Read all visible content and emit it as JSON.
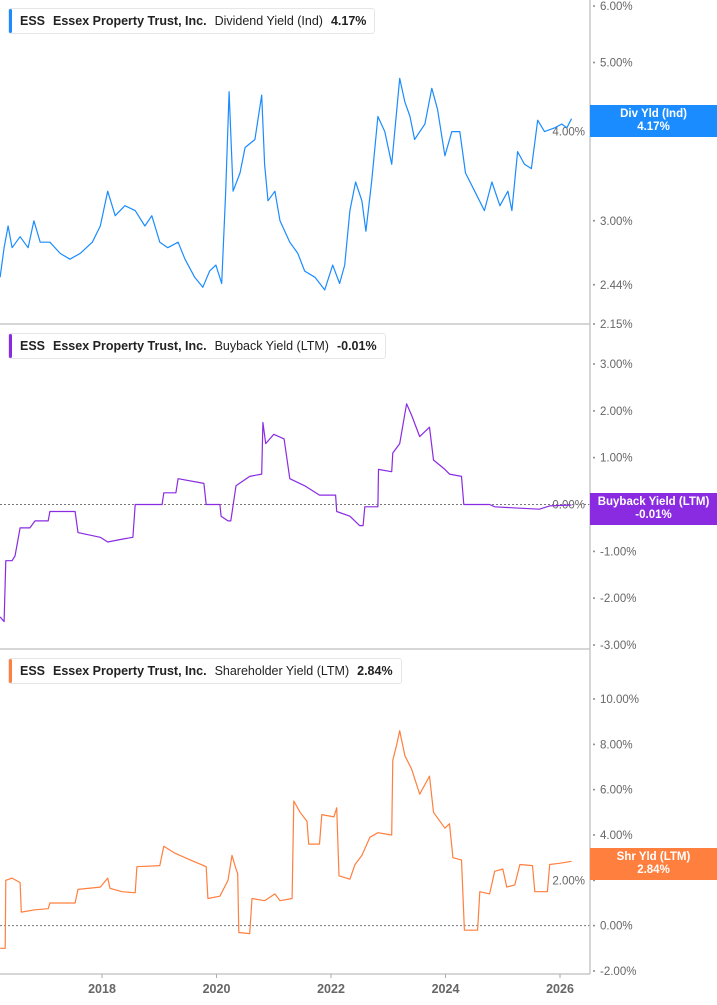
{
  "chart_data": [
    {
      "type": "line",
      "ticker": "ESS",
      "company": "Essex Property Trust, Inc.",
      "metric": "Dividend Yield (Ind)",
      "current_value": "4.17%",
      "callout_label": "Div Yld (Ind)",
      "callout_value": "4.17%",
      "color": "#1a8cff",
      "y_scale": "log",
      "ylim": [
        2.15,
        6.0
      ],
      "y_ticks": [
        "6.00%",
        "5.00%",
        "4.00%",
        "3.00%",
        "2.44%",
        "2.15%"
      ],
      "y_tick_values": [
        6,
        5,
        4,
        3,
        2.44,
        2.15
      ],
      "zero_line": false,
      "points": [
        [
          2016.22,
          2.5
        ],
        [
          2016.29,
          2.75
        ],
        [
          2016.36,
          2.95
        ],
        [
          2016.43,
          2.75
        ],
        [
          2016.57,
          2.85
        ],
        [
          2016.71,
          2.75
        ],
        [
          2016.81,
          3.0
        ],
        [
          2016.92,
          2.8
        ],
        [
          2017.09,
          2.8
        ],
        [
          2017.27,
          2.7
        ],
        [
          2017.44,
          2.65
        ],
        [
          2017.62,
          2.7
        ],
        [
          2017.83,
          2.8
        ],
        [
          2017.97,
          2.95
        ],
        [
          2018.1,
          3.3
        ],
        [
          2018.23,
          3.05
        ],
        [
          2018.4,
          3.15
        ],
        [
          2018.58,
          3.1
        ],
        [
          2018.75,
          2.95
        ],
        [
          2018.87,
          3.05
        ],
        [
          2019.01,
          2.8
        ],
        [
          2019.15,
          2.75
        ],
        [
          2019.33,
          2.8
        ],
        [
          2019.45,
          2.65
        ],
        [
          2019.62,
          2.5
        ],
        [
          2019.76,
          2.42
        ],
        [
          2019.88,
          2.55
        ],
        [
          2019.99,
          2.6
        ],
        [
          2020.09,
          2.45
        ],
        [
          2020.16,
          3.3
        ],
        [
          2020.22,
          4.55
        ],
        [
          2020.29,
          3.3
        ],
        [
          2020.41,
          3.5
        ],
        [
          2020.5,
          3.8
        ],
        [
          2020.67,
          3.9
        ],
        [
          2020.79,
          4.5
        ],
        [
          2020.84,
          3.6
        ],
        [
          2020.9,
          3.2
        ],
        [
          2021.02,
          3.3
        ],
        [
          2021.11,
          3.0
        ],
        [
          2021.28,
          2.8
        ],
        [
          2021.42,
          2.7
        ],
        [
          2021.54,
          2.55
        ],
        [
          2021.72,
          2.5
        ],
        [
          2021.89,
          2.4
        ],
        [
          2022.03,
          2.6
        ],
        [
          2022.15,
          2.45
        ],
        [
          2022.24,
          2.6
        ],
        [
          2022.33,
          3.1
        ],
        [
          2022.43,
          3.4
        ],
        [
          2022.54,
          3.2
        ],
        [
          2022.61,
          2.9
        ],
        [
          2022.71,
          3.4
        ],
        [
          2022.82,
          4.2
        ],
        [
          2022.94,
          4.0
        ],
        [
          2023.06,
          3.6
        ],
        [
          2023.2,
          4.75
        ],
        [
          2023.29,
          4.4
        ],
        [
          2023.38,
          4.2
        ],
        [
          2023.46,
          3.9
        ],
        [
          2023.64,
          4.1
        ],
        [
          2023.76,
          4.6
        ],
        [
          2023.86,
          4.3
        ],
        [
          2023.99,
          3.7
        ],
        [
          2024.11,
          4.0
        ],
        [
          2024.25,
          4.0
        ],
        [
          2024.35,
          3.5
        ],
        [
          2024.51,
          3.3
        ],
        [
          2024.68,
          3.1
        ],
        [
          2024.81,
          3.4
        ],
        [
          2024.95,
          3.15
        ],
        [
          2025.09,
          3.3
        ],
        [
          2025.16,
          3.1
        ],
        [
          2025.26,
          3.75
        ],
        [
          2025.38,
          3.6
        ],
        [
          2025.5,
          3.55
        ],
        [
          2025.61,
          4.15
        ],
        [
          2025.73,
          4.0
        ],
        [
          2025.91,
          4.05
        ],
        [
          2026.03,
          4.1
        ],
        [
          2026.12,
          4.05
        ],
        [
          2026.2,
          4.17
        ]
      ]
    },
    {
      "type": "line",
      "ticker": "ESS",
      "company": "Essex Property Trust, Inc.",
      "metric": "Buyback Yield (LTM)",
      "current_value": "-0.01%",
      "callout_label": "Buyback Yield (LTM)",
      "callout_value": "-0.01%",
      "color": "#8a2be2",
      "y_scale": "linear",
      "ylim": [
        -3.0,
        3.0
      ],
      "y_ticks": [
        "3.00%",
        "2.00%",
        "1.00%",
        "0.00%",
        "-1.00%",
        "-2.00%",
        "-3.00%"
      ],
      "y_tick_values": [
        3,
        2,
        1,
        0,
        -1,
        -2,
        -3
      ],
      "zero_line": true,
      "points": [
        [
          2016.22,
          -2.4
        ],
        [
          2016.29,
          -2.5
        ],
        [
          2016.32,
          -1.2
        ],
        [
          2016.43,
          -1.2
        ],
        [
          2016.48,
          -1.1
        ],
        [
          2016.57,
          -0.5
        ],
        [
          2016.74,
          -0.5
        ],
        [
          2016.83,
          -0.35
        ],
        [
          2017.06,
          -0.35
        ],
        [
          2017.09,
          -0.15
        ],
        [
          2017.53,
          -0.15
        ],
        [
          2017.58,
          -0.6
        ],
        [
          2017.97,
          -0.7
        ],
        [
          2018.1,
          -0.8
        ],
        [
          2018.31,
          -0.75
        ],
        [
          2018.54,
          -0.7
        ],
        [
          2018.58,
          0.0
        ],
        [
          2019.05,
          0.0
        ],
        [
          2019.08,
          0.25
        ],
        [
          2019.29,
          0.25
        ],
        [
          2019.33,
          0.55
        ],
        [
          2019.78,
          0.45
        ],
        [
          2019.82,
          0.0
        ],
        [
          2020.06,
          0.0
        ],
        [
          2020.08,
          -0.25
        ],
        [
          2020.2,
          -0.35
        ],
        [
          2020.25,
          -0.35
        ],
        [
          2020.34,
          0.4
        ],
        [
          2020.58,
          0.6
        ],
        [
          2020.79,
          0.65
        ],
        [
          2020.81,
          1.75
        ],
        [
          2020.86,
          1.3
        ],
        [
          2021.0,
          1.5
        ],
        [
          2021.18,
          1.4
        ],
        [
          2021.28,
          0.55
        ],
        [
          2021.54,
          0.4
        ],
        [
          2021.8,
          0.2
        ],
        [
          2022.08,
          0.2
        ],
        [
          2022.1,
          -0.15
        ],
        [
          2022.33,
          -0.25
        ],
        [
          2022.5,
          -0.45
        ],
        [
          2022.56,
          -0.45
        ],
        [
          2022.59,
          -0.05
        ],
        [
          2022.82,
          -0.05
        ],
        [
          2022.83,
          0.75
        ],
        [
          2023.06,
          0.7
        ],
        [
          2023.08,
          1.1
        ],
        [
          2023.2,
          1.3
        ],
        [
          2023.32,
          2.15
        ],
        [
          2023.41,
          1.9
        ],
        [
          2023.55,
          1.45
        ],
        [
          2023.72,
          1.65
        ],
        [
          2023.79,
          0.95
        ],
        [
          2023.99,
          0.75
        ],
        [
          2024.07,
          0.65
        ],
        [
          2024.28,
          0.6
        ],
        [
          2024.32,
          0.0
        ],
        [
          2024.77,
          0.0
        ],
        [
          2024.86,
          -0.05
        ],
        [
          2025.3,
          -0.08
        ],
        [
          2025.64,
          -0.1
        ],
        [
          2025.82,
          -0.03
        ],
        [
          2026.2,
          -0.01
        ]
      ]
    },
    {
      "type": "line",
      "ticker": "ESS",
      "company": "Essex Property Trust, Inc.",
      "metric": "Shareholder Yield (LTM)",
      "current_value": "2.84%",
      "callout_label": "Shr Yld (LTM)",
      "callout_value": "2.84%",
      "color": "#ff7f3f",
      "y_scale": "linear",
      "ylim": [
        -2.0,
        10.0
      ],
      "y_ticks": [
        "10.00%",
        "8.00%",
        "6.00%",
        "4.00%",
        "2.00%",
        "0.00%",
        "-2.00%"
      ],
      "y_tick_values": [
        10,
        8,
        6,
        4,
        2,
        0,
        -2
      ],
      "zero_line": true,
      "points": [
        [
          2016.22,
          -1.0
        ],
        [
          2016.31,
          -1.0
        ],
        [
          2016.32,
          2.0
        ],
        [
          2016.43,
          2.1
        ],
        [
          2016.57,
          1.9
        ],
        [
          2016.59,
          0.6
        ],
        [
          2016.83,
          0.7
        ],
        [
          2017.06,
          0.75
        ],
        [
          2017.09,
          1.0
        ],
        [
          2017.53,
          1.0
        ],
        [
          2017.58,
          1.6
        ],
        [
          2017.97,
          1.7
        ],
        [
          2018.1,
          2.1
        ],
        [
          2018.14,
          1.65
        ],
        [
          2018.35,
          1.5
        ],
        [
          2018.58,
          1.45
        ],
        [
          2018.61,
          2.6
        ],
        [
          2019.01,
          2.65
        ],
        [
          2019.08,
          3.5
        ],
        [
          2019.27,
          3.2
        ],
        [
          2019.54,
          2.9
        ],
        [
          2019.82,
          2.6
        ],
        [
          2019.85,
          1.2
        ],
        [
          2020.06,
          1.3
        ],
        [
          2020.2,
          2.0
        ],
        [
          2020.27,
          3.1
        ],
        [
          2020.34,
          2.5
        ],
        [
          2020.37,
          2.3
        ],
        [
          2020.39,
          -0.3
        ],
        [
          2020.58,
          -0.35
        ],
        [
          2020.62,
          1.2
        ],
        [
          2020.84,
          1.1
        ],
        [
          2021.02,
          1.4
        ],
        [
          2021.11,
          1.1
        ],
        [
          2021.32,
          1.2
        ],
        [
          2021.35,
          5.5
        ],
        [
          2021.46,
          5.0
        ],
        [
          2021.58,
          4.6
        ],
        [
          2021.61,
          3.6
        ],
        [
          2021.8,
          3.6
        ],
        [
          2021.84,
          4.9
        ],
        [
          2022.05,
          4.8
        ],
        [
          2022.1,
          5.2
        ],
        [
          2022.14,
          2.2
        ],
        [
          2022.33,
          2.05
        ],
        [
          2022.42,
          2.7
        ],
        [
          2022.54,
          3.1
        ],
        [
          2022.68,
          3.9
        ],
        [
          2022.82,
          4.1
        ],
        [
          2023.06,
          4.0
        ],
        [
          2023.08,
          7.3
        ],
        [
          2023.15,
          8.0
        ],
        [
          2023.2,
          8.6
        ],
        [
          2023.29,
          7.5
        ],
        [
          2023.41,
          6.9
        ],
        [
          2023.55,
          5.8
        ],
        [
          2023.72,
          6.6
        ],
        [
          2023.79,
          5.0
        ],
        [
          2023.99,
          4.3
        ],
        [
          2024.07,
          4.5
        ],
        [
          2024.13,
          3.0
        ],
        [
          2024.28,
          2.9
        ],
        [
          2024.33,
          -0.2
        ],
        [
          2024.56,
          -0.2
        ],
        [
          2024.6,
          1.5
        ],
        [
          2024.77,
          1.4
        ],
        [
          2024.86,
          2.4
        ],
        [
          2025.0,
          2.5
        ],
        [
          2025.07,
          1.7
        ],
        [
          2025.21,
          1.8
        ],
        [
          2025.3,
          2.7
        ],
        [
          2025.52,
          2.65
        ],
        [
          2025.56,
          1.5
        ],
        [
          2025.78,
          1.5
        ],
        [
          2025.82,
          2.7
        ],
        [
          2025.99,
          2.75
        ],
        [
          2026.2,
          2.84
        ]
      ]
    }
  ],
  "x_axis": {
    "xlim": [
      2016.22,
      2026.5
    ],
    "ticks": [
      "2018",
      "2020",
      "2022",
      "2024",
      "2026"
    ],
    "tick_values": [
      2018,
      2020,
      2022,
      2024,
      2026
    ]
  }
}
